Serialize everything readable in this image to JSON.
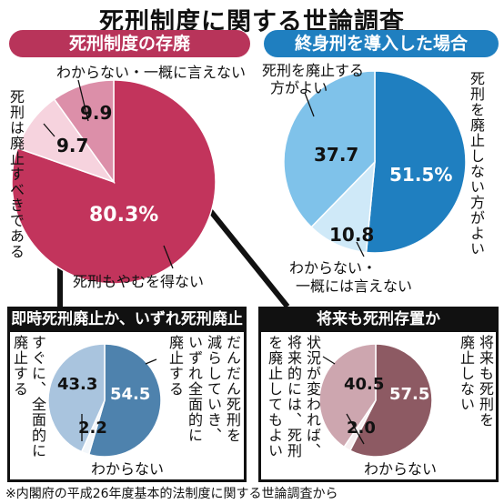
{
  "title": "死刑制度に関する世論調査",
  "footer": "※内閣府の平成26年度基本的法制度に関する世論調査から",
  "chart_data": [
    {
      "type": "pie",
      "title": "死刑制度の存廃",
      "slices": [
        {
          "label": "死刑もやむを得ない",
          "value": 80.3,
          "value_text": "80.3%",
          "color": "#c2345c"
        },
        {
          "label": "死刑は廃止すべきである",
          "value": 9.7,
          "value_text": "9.7",
          "color": "#f6d3de"
        },
        {
          "label": "わからない・一概に言えない",
          "value": 9.9,
          "value_text": "9.9",
          "color": "#dc8fa9"
        }
      ]
    },
    {
      "type": "pie",
      "title": "終身刑を導入した場合",
      "slices": [
        {
          "label": "死刑を廃止しない方がよい",
          "value": 51.5,
          "value_text": "51.5%",
          "color": "#1f7fc0"
        },
        {
          "label": "わからない・一概には言えない",
          "value": 10.8,
          "value_text": "10.8",
          "color": "#cfe9f8"
        },
        {
          "label": "死刑を廃止する方がよい",
          "value": 37.7,
          "value_text": "37.7",
          "color": "#7fc2ea"
        }
      ]
    },
    {
      "type": "pie",
      "title": "即時死刑廃止か、いずれ死刑廃止か",
      "slices": [
        {
          "label": "だんだん死刑を減らしていき、いずれ全面的に廃止する",
          "value": 54.5,
          "value_text": "54.5",
          "color": "#4e82ad"
        },
        {
          "label": "わからない",
          "value": 2.2,
          "value_text": "2.2",
          "color": "#f2f6fa"
        },
        {
          "label": "すぐに、全面的に廃止する",
          "value": 43.3,
          "value_text": "43.3",
          "color": "#a9c4de"
        }
      ]
    },
    {
      "type": "pie",
      "title": "将来も死刑存置か",
      "slices": [
        {
          "label": "将来も死刑を廃止しない",
          "value": 57.5,
          "value_text": "57.5",
          "color": "#8d5a63"
        },
        {
          "label": "わからない",
          "value": 2.0,
          "value_text": "2.0",
          "color": "#f6eef0"
        },
        {
          "label": "状況が変われば、将来的には、死刑を廃止してもよい",
          "value": 40.5,
          "value_text": "40.5",
          "color": "#cda6af"
        }
      ]
    }
  ],
  "text": {
    "c1_opt_cannot_say": "わからない・一概に言えない",
    "c1_opt_abolish": "死刑は廃止すべきである",
    "c1_opt_unavoidable": "死刑もやむを得ない",
    "c2_opt_abolish_line1": "死刑を廃止する",
    "c2_opt_abolish_line2": "方がよい",
    "c2_opt_keep": "死刑を廃止しない方がよい",
    "c2_opt_unknown_line1": "わからない・",
    "c2_opt_unknown_line2": "一概には言えない",
    "c3_opt_gradual_col1": "だんだん死刑を",
    "c3_opt_gradual_col2": "減らしていき、",
    "c3_opt_gradual_col3": "いずれ全面的に",
    "c3_opt_gradual_col4": "廃止する",
    "c3_opt_now_col1": "すぐに、全面的に",
    "c3_opt_now_col2": "廃止する",
    "c3_opt_unknown": "わからない",
    "c4_opt_keep_col1": "将来も死刑を",
    "c4_opt_keep_col2": "廃止しない",
    "c4_opt_change_col1": "状況が変われば、",
    "c4_opt_change_col2": "将来的には、死刑",
    "c4_opt_change_col3": "を廃止してもよい",
    "c4_opt_unknown": "わからない"
  }
}
